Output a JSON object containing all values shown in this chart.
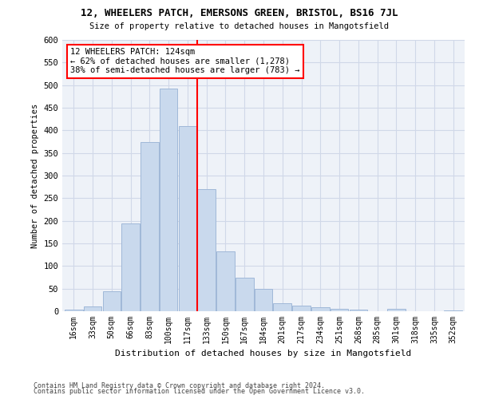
{
  "title": "12, WHEELERS PATCH, EMERSONS GREEN, BRISTOL, BS16 7JL",
  "subtitle": "Size of property relative to detached houses in Mangotsfield",
  "xlabel": "Distribution of detached houses by size in Mangotsfield",
  "ylabel": "Number of detached properties",
  "categories": [
    "16sqm",
    "33sqm",
    "50sqm",
    "66sqm",
    "83sqm",
    "100sqm",
    "117sqm",
    "133sqm",
    "150sqm",
    "167sqm",
    "184sqm",
    "201sqm",
    "217sqm",
    "234sqm",
    "251sqm",
    "268sqm",
    "285sqm",
    "301sqm",
    "318sqm",
    "335sqm",
    "352sqm"
  ],
  "values": [
    3,
    10,
    45,
    195,
    375,
    493,
    410,
    270,
    133,
    75,
    50,
    18,
    12,
    8,
    6,
    3,
    0,
    5,
    0,
    0,
    2
  ],
  "bar_color": "#c9d9ed",
  "bar_edge_color": "#a0b8d8",
  "grid_color": "#d0d8e8",
  "background_color": "#eef2f8",
  "red_line_x": 6.5,
  "annotation_title": "12 WHEELERS PATCH: 124sqm",
  "annotation_line1": "← 62% of detached houses are smaller (1,278)",
  "annotation_line2": "38% of semi-detached houses are larger (783) →",
  "footer1": "Contains HM Land Registry data © Crown copyright and database right 2024.",
  "footer2": "Contains public sector information licensed under the Open Government Licence v3.0.",
  "ylim": [
    0,
    600
  ],
  "yticks": [
    0,
    50,
    100,
    150,
    200,
    250,
    300,
    350,
    400,
    450,
    500,
    550,
    600
  ]
}
